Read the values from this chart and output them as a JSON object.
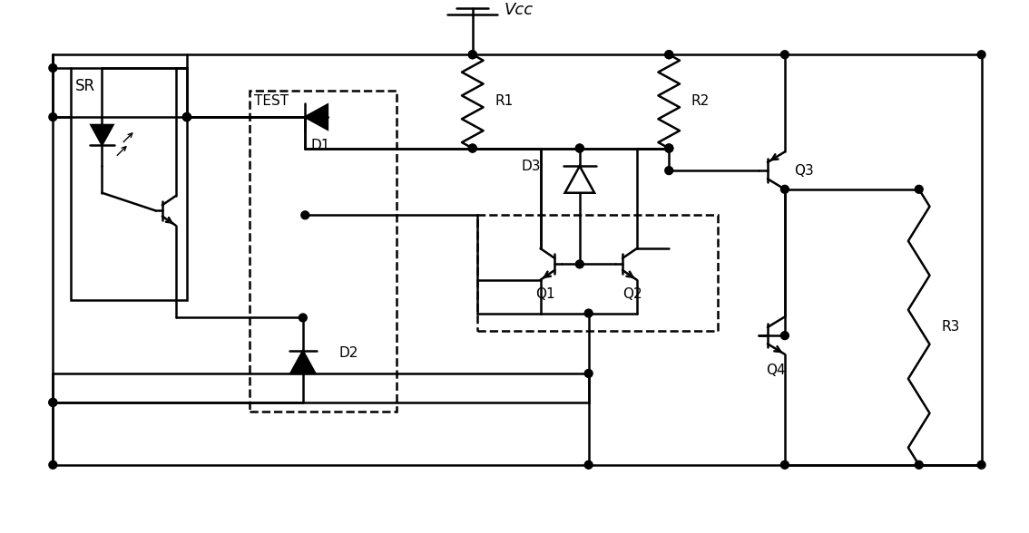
{
  "figsize": [
    11.34,
    5.88
  ],
  "dpi": 100,
  "lw": 1.8,
  "color": "black",
  "bg": "white",
  "xlim": [
    0,
    113.4
  ],
  "ylim": [
    0,
    58.8
  ]
}
